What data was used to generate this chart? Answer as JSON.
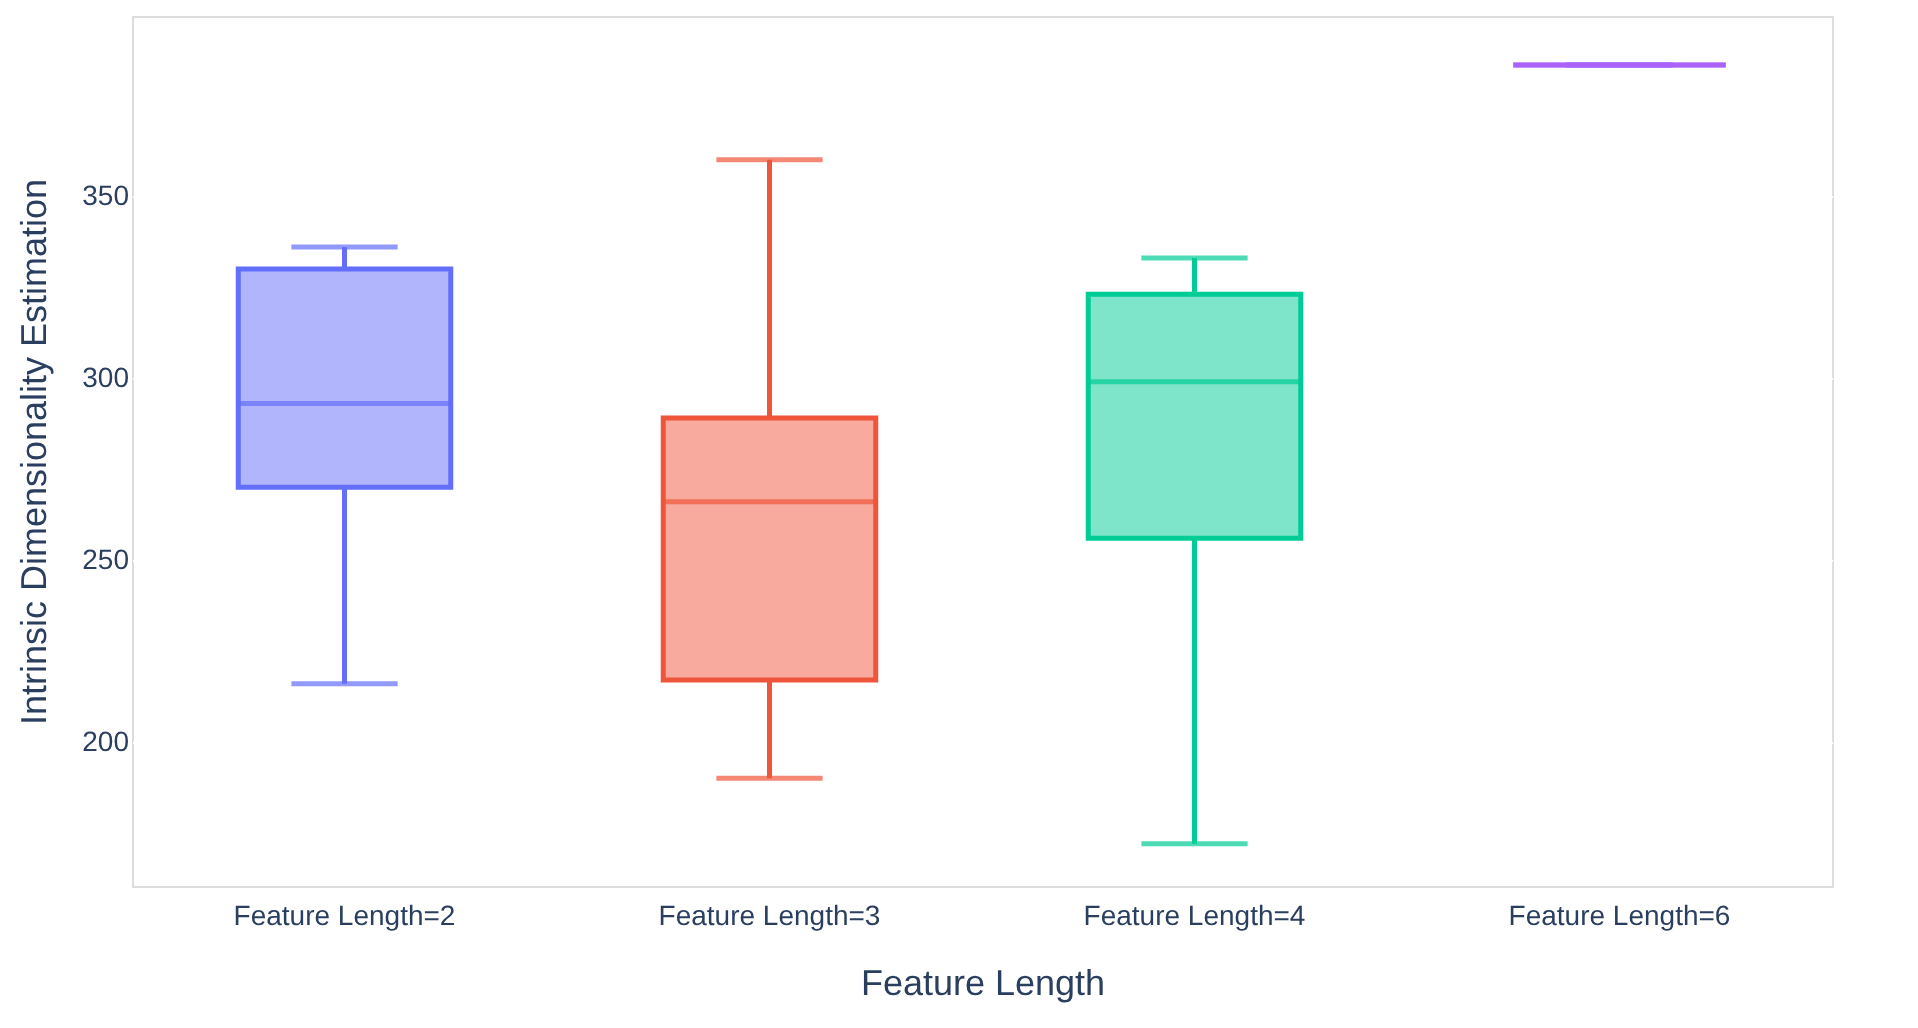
{
  "chart_data": {
    "type": "box",
    "xlabel": "Feature Length",
    "ylabel": "Intrinsic Dimensionality Estimation",
    "categories": [
      "Feature Length=2",
      "Feature Length=3",
      "Feature Length=4",
      "Feature Length=6"
    ],
    "colors": [
      "#636efa",
      "#ef553b",
      "#00cc96",
      "#ab63fa"
    ],
    "boxes": [
      {
        "low": 216,
        "q1": 270,
        "median": 293,
        "q3": 330,
        "high": 336
      },
      {
        "low": 190,
        "q1": 217,
        "median": 266,
        "q3": 289,
        "high": 360
      },
      {
        "low": 172,
        "q1": 256,
        "median": 299,
        "q3": 323,
        "high": 333
      },
      {
        "low": 386,
        "q1": 386,
        "median": 386,
        "q3": 386,
        "high": 386
      }
    ],
    "ylim": [
      160.4,
      399.5
    ],
    "yticks": [
      200,
      250,
      300,
      350
    ],
    "grid": "y",
    "legend": false
  }
}
